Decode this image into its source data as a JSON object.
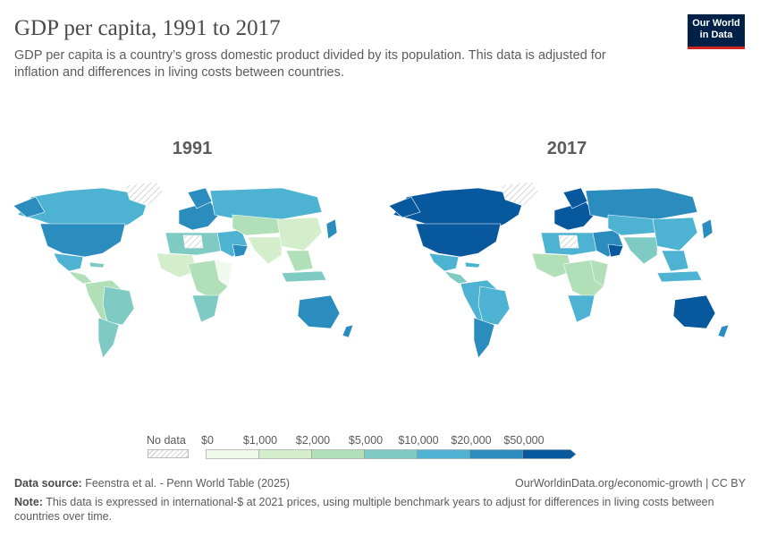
{
  "header": {
    "title": "GDP per capita, 1991 to 2017",
    "subtitle": "GDP per capita is a country’s gross domestic product divided by its population. This data is adjusted for inflation and differences in living costs between countries."
  },
  "logo": {
    "line1": "Our World",
    "line2": "in Data"
  },
  "maps": [
    {
      "year": "1991"
    },
    {
      "year": "2017"
    }
  ],
  "legend": {
    "no_data_label": "No data",
    "bins": [
      "$0",
      "$1,000",
      "$2,000",
      "$5,000",
      "$10,000",
      "$20,000",
      "$50,000"
    ],
    "colors": [
      "#f1f9ec",
      "#d4eecb",
      "#b0dfb8",
      "#7fcbc4",
      "#4eb3d3",
      "#2b8cbe",
      "#08589e"
    ]
  },
  "footer": {
    "source_label": "Data source:",
    "source_text": "Feenstra et al. - Penn World Table (2025)",
    "url": "OurWorldinData.org/economic-growth | CC BY",
    "note_label": "Note:",
    "note_text": "This data is expressed in international-$ at 2021 prices, using multiple benchmark years to adjust for differences in living costs between countries over time."
  }
}
